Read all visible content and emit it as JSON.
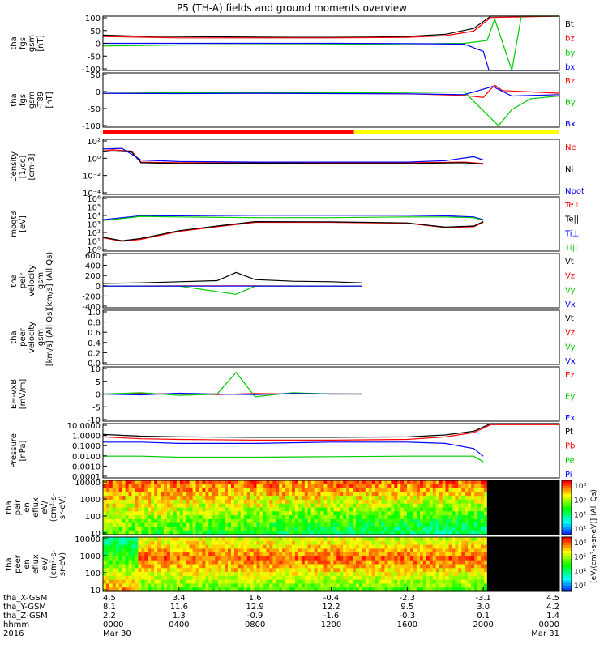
{
  "title": "P5 (TH-A) fields and ground moments overview",
  "year": "2016",
  "colors": {
    "black": "#000000",
    "red": "#ff0000",
    "green": "#00cc00",
    "blue": "#0000ff",
    "yellow": "#ffff00"
  },
  "panels": [
    {
      "id": "fgs-gsm",
      "ylabel": [
        "tha",
        "fgs",
        "gsm",
        "[nT]"
      ],
      "yticks": [
        "100",
        "50",
        "0",
        "-50",
        "-100"
      ],
      "legend": [
        {
          "text": "Bt",
          "color": "#000000"
        },
        {
          "text": "bz",
          "color": "#ff0000"
        },
        {
          "text": "by",
          "color": "#00cc00"
        },
        {
          "text": "bx",
          "color": "#0000ff"
        }
      ]
    },
    {
      "id": "fgs-gsm-t89",
      "ylabel": [
        "tha",
        "fgs",
        "gsm",
        "-T89",
        "[nT]"
      ],
      "yticks": [
        "50",
        "0",
        "-50",
        "-100"
      ],
      "legend": [
        {
          "text": "Bz",
          "color": "#ff0000"
        },
        {
          "text": "By",
          "color": "#00cc00"
        },
        {
          "text": "Bx",
          "color": "#0000ff"
        }
      ]
    },
    {
      "id": "density",
      "ylabel": [
        "Density",
        "[1/cc]",
        "[cm-3]"
      ],
      "yticks": [
        "10²",
        "10⁰",
        "10⁻²",
        "10⁻⁴"
      ],
      "legend": [
        {
          "text": "Ne",
          "color": "#ff0000"
        },
        {
          "text": "Ni",
          "color": "#000000"
        },
        {
          "text": "Npot",
          "color": "#0000ff"
        }
      ]
    },
    {
      "id": "temperature",
      "ylabel": [
        "moqt3",
        "[eV]"
      ],
      "yticks": [
        "10⁶",
        "10⁵",
        "10⁴",
        "10³",
        "10²",
        "10¹",
        "10⁰"
      ],
      "legend": [
        {
          "text": "Te⊥",
          "color": "#ff0000"
        },
        {
          "text": "Te||",
          "color": "#000000"
        },
        {
          "text": "Ti⊥",
          "color": "#0000ff"
        },
        {
          "text": "Ti||",
          "color": "#00cc00"
        }
      ]
    },
    {
      "id": "peir-velocity",
      "ylabel": [
        "tha",
        "peir",
        "velocity",
        "gsm",
        "[km/s] (All Qs)"
      ],
      "yticks": [
        "600",
        "400",
        "200",
        "0",
        "-200",
        "-400"
      ],
      "legend": [
        {
          "text": "Vt",
          "color": "#000000"
        },
        {
          "text": "Vz",
          "color": "#ff0000"
        },
        {
          "text": "Vy",
          "color": "#00cc00"
        },
        {
          "text": "Vx",
          "color": "#0000ff"
        }
      ]
    },
    {
      "id": "peer-velocity",
      "ylabel": [
        "tha",
        "peer",
        "velocity",
        "gsm",
        "[km/s] (All Qs)"
      ],
      "yticks": [
        "1.0",
        "0.8",
        "0.6",
        "0.4",
        "0.2",
        "0.0"
      ],
      "legend": [
        {
          "text": "Vt",
          "color": "#000000"
        },
        {
          "text": "Vz",
          "color": "#ff0000"
        },
        {
          "text": "Vy",
          "color": "#00cc00"
        },
        {
          "text": "Vx",
          "color": "#0000ff"
        }
      ]
    },
    {
      "id": "efield",
      "ylabel": [
        "E=-VxB",
        "[mV/m]"
      ],
      "yticks": [
        "10",
        "5",
        "0",
        "-5",
        "-10"
      ],
      "legend": [
        {
          "text": "Ez",
          "color": "#ff0000"
        },
        {
          "text": "Ey",
          "color": "#00cc00"
        },
        {
          "text": "Ex",
          "color": "#0000ff"
        }
      ]
    },
    {
      "id": "pressure",
      "ylabel": [
        "Pressure",
        "[nPa]"
      ],
      "yticks": [
        "10.0000",
        "1.0000",
        "0.1000",
        "0.0100",
        "0.0010",
        "0.0001"
      ],
      "legend": [
        {
          "text": "Pt",
          "color": "#000000"
        },
        {
          "text": "Pb",
          "color": "#ff0000"
        },
        {
          "text": "Pe",
          "color": "#00cc00"
        },
        {
          "text": "Pi",
          "color": "#0000ff"
        }
      ]
    },
    {
      "id": "peir-spectrogram",
      "ylabel": [
        "tha",
        "peir",
        "en",
        "eflux",
        "eV/",
        "(cm²-s-",
        "sr-eV)"
      ],
      "yticks": [
        "10000",
        "1000",
        "100",
        "10"
      ],
      "legend": []
    },
    {
      "id": "peer-spectrogram",
      "ylabel": [
        "tha",
        "peer",
        "en",
        "eflux",
        "eV/",
        "(cm²-s-",
        "sr-eV)"
      ],
      "yticks": [
        "10000",
        "1000",
        "100",
        "10"
      ],
      "legend": []
    }
  ],
  "colorbar": {
    "top_ticks": [
      "10⁸",
      "10⁶",
      "10⁴",
      "10²"
    ],
    "bottom_ticks": [
      "10⁸",
      "10⁶",
      "10⁴",
      "10²"
    ],
    "label": "[eV/(cm²-s-sr-eV)] (All Qs)"
  },
  "xaxis": {
    "row_labels": [
      "tha_X-GSM",
      "tha_Y-GSM",
      "tha_Z-GSM",
      "hhmm",
      "2016"
    ],
    "columns": [
      {
        "x": "4.5",
        "y": "8.1",
        "z": "2.2",
        "time": "0000",
        "date": "Mar 30"
      },
      {
        "x": "3.4",
        "y": "11.6",
        "z": "1.3",
        "time": "0400",
        "date": ""
      },
      {
        "x": "1.6",
        "y": "12.9",
        "z": "-0.9",
        "time": "0800",
        "date": ""
      },
      {
        "x": "-0.4",
        "y": "12.2",
        "z": "-1.6",
        "time": "1200",
        "date": ""
      },
      {
        "x": "-2.3",
        "y": "9.5",
        "z": "-0.3",
        "time": "1600",
        "date": ""
      },
      {
        "x": "-3.1",
        "y": "3.0",
        "z": "0.1",
        "time": "2000",
        "date": ""
      },
      {
        "x": "4.5",
        "y": "4.2",
        "z": "1.4",
        "time": "0000",
        "date": "Mar 31"
      }
    ]
  },
  "chart_data": {
    "type": "line",
    "title": "P5 (TH-A) fields and ground moments overview",
    "x_range_hours": [
      0,
      24
    ],
    "x_ticks_hhmm": [
      "0000",
      "0400",
      "0800",
      "1200",
      "1600",
      "2000",
      "0000"
    ],
    "grid": false,
    "legend_placement": "right",
    "panels": [
      {
        "id": "fgs-gsm",
        "ylim": [
          -100,
          100
        ],
        "series": [
          {
            "name": "Bt",
            "x": [
              0,
              2,
              4,
              6,
              8,
              10,
              12,
              14,
              16,
              18,
              19.5,
              20.4,
              24
            ],
            "y": [
              30,
              26,
              25,
              24,
              23,
              22,
              22,
              23,
              25,
              33,
              55,
              100,
              100
            ]
          },
          {
            "name": "bz",
            "x": [
              0,
              4,
              8,
              12,
              16,
              18,
              19.5,
              20.4,
              24
            ],
            "y": [
              25,
              20,
              20,
              20,
              22,
              28,
              45,
              95,
              100
            ]
          },
          {
            "name": "by",
            "x": [
              0,
              4,
              8,
              12,
              16,
              19,
              20.2,
              20.6,
              21.5,
              22,
              24
            ],
            "y": [
              -10,
              -6,
              -5,
              -4,
              -2,
              0,
              10,
              90,
              -100,
              100,
              100
            ]
          },
          {
            "name": "bx",
            "x": [
              0,
              4,
              8,
              12,
              16,
              19,
              20,
              20.3,
              24
            ],
            "y": [
              0,
              0,
              0,
              0,
              -1,
              -3,
              -30,
              -100,
              -100
            ]
          }
        ]
      },
      {
        "id": "fgs-gsm-t89",
        "ylim": [
          -125,
          75
        ],
        "series": [
          {
            "name": "Bz",
            "x": [
              0,
              4,
              8,
              12,
              16,
              19,
              20,
              20.6,
              21,
              24
            ],
            "y": [
              0,
              1,
              0,
              0,
              -2,
              -8,
              -15,
              30,
              10,
              0
            ]
          },
          {
            "name": "By",
            "x": [
              0,
              4,
              8,
              12,
              16,
              19,
              20.8,
              21.5,
              22.5,
              24
            ],
            "y": [
              0,
              2,
              3,
              2,
              3,
              5,
              -120,
              -60,
              -20,
              -10
            ]
          },
          {
            "name": "Bx",
            "x": [
              0,
              4,
              8,
              12,
              16,
              19,
              20.5,
              21.5,
              24
            ],
            "y": [
              0,
              -1,
              0,
              -1,
              -2,
              -5,
              25,
              -10,
              -5
            ]
          }
        ]
      },
      {
        "id": "density",
        "yscale": "log",
        "ylim": [
          1e-05,
          1000
        ],
        "series": [
          {
            "name": "Ne",
            "x": [
              0,
              0.5,
              1.5,
              2,
              4,
              8,
              12,
              16,
              19,
              20
            ],
            "y": [
              20,
              30,
              20,
              0.5,
              0.4,
              0.4,
              0.4,
              0.4,
              0.5,
              0.3
            ]
          },
          {
            "name": "Ni",
            "x": [
              0,
              0.5,
              1.5,
              2,
              4,
              8,
              12,
              16,
              19,
              20
            ],
            "y": [
              15,
              20,
              15,
              0.4,
              0.3,
              0.35,
              0.3,
              0.3,
              0.4,
              0.25
            ]
          },
          {
            "name": "Npot",
            "x": [
              0,
              1,
              2,
              4,
              8,
              12,
              16,
              18,
              19.5,
              20
            ],
            "y": [
              40,
              50,
              1,
              0.6,
              0.5,
              0.5,
              0.5,
              0.8,
              3,
              1
            ]
          }
        ]
      },
      {
        "id": "temperature",
        "yscale": "log",
        "ylim": [
          1,
          1000000
        ],
        "series": [
          {
            "name": "Te⊥",
            "x": [
              0,
              1,
              2,
              4,
              6,
              8,
              12,
              16,
              18,
              19.5,
              20
            ],
            "y": [
              30,
              12,
              20,
              150,
              500,
              1500,
              1500,
              1200,
              400,
              500,
              1500
            ]
          },
          {
            "name": "Te||",
            "x": [
              0,
              1,
              2,
              4,
              6,
              8,
              12,
              16,
              18,
              19.5,
              20
            ],
            "y": [
              35,
              14,
              25,
              180,
              600,
              1800,
              1700,
              1300,
              450,
              600,
              1800
            ]
          },
          {
            "name": "Ti⊥",
            "x": [
              0,
              1,
              2,
              4,
              8,
              12,
              16,
              18,
              19.5,
              20
            ],
            "y": [
              3000,
              5000,
              8000,
              8000,
              9000,
              9000,
              9000,
              8000,
              6000,
              3000
            ]
          },
          {
            "name": "Ti||",
            "x": [
              0,
              1,
              2,
              4,
              8,
              12,
              16,
              18,
              19.5,
              20
            ],
            "y": [
              2500,
              4000,
              7000,
              6000,
              5000,
              5000,
              6000,
              6000,
              5000,
              2500
            ]
          }
        ]
      },
      {
        "id": "peir-velocity",
        "ylim": [
          -400,
          600
        ],
        "series": [
          {
            "name": "Vt",
            "x": [
              0,
              2,
              4,
              6,
              7,
              8,
              10,
              12,
              13.6
            ],
            "y": [
              50,
              60,
              80,
              100,
              250,
              120,
              90,
              80,
              60
            ]
          },
          {
            "name": "Vz",
            "x": [
              0,
              4,
              8,
              12,
              13.6
            ],
            "y": [
              0,
              5,
              5,
              0,
              0
            ]
          },
          {
            "name": "Vy",
            "x": [
              0,
              4,
              7,
              8,
              12,
              13.6
            ],
            "y": [
              0,
              0,
              -150,
              0,
              0,
              0
            ]
          },
          {
            "name": "Vx",
            "x": [
              0,
              4,
              8,
              12,
              13.6
            ],
            "y": [
              0,
              0,
              0,
              0,
              0
            ]
          }
        ]
      },
      {
        "id": "peer-velocity",
        "ylim": [
          0,
          1
        ],
        "series": []
      },
      {
        "id": "efield",
        "ylim": [
          -10,
          10
        ],
        "series": [
          {
            "name": "Ez",
            "x": [
              0,
              2,
              4,
              6,
              8,
              10,
              12,
              13.6
            ],
            "y": [
              0,
              0.2,
              0,
              -0.2,
              0.2,
              0,
              0.1,
              0
            ]
          },
          {
            "name": "Ey",
            "x": [
              0,
              2,
              4,
              6,
              7,
              8,
              10,
              12,
              13.6
            ],
            "y": [
              0,
              0.5,
              -0.5,
              0,
              8,
              -1,
              0.5,
              0,
              0
            ]
          },
          {
            "name": "Ex",
            "x": [
              0,
              2,
              4,
              6,
              8,
              10,
              12,
              13.6
            ],
            "y": [
              0,
              -0.3,
              0.3,
              0,
              -0.2,
              0.2,
              0,
              0
            ]
          }
        ]
      },
      {
        "id": "pressure",
        "yscale": "log",
        "ylim": [
          0.0001,
          10
        ],
        "series": [
          {
            "name": "Pt",
            "x": [
              0,
              2,
              4,
              8,
              12,
              16,
              18,
              19.5,
              20.4,
              24
            ],
            "y": [
              1,
              0.7,
              0.6,
              0.55,
              0.55,
              0.6,
              0.9,
              2,
              10,
              10
            ]
          },
          {
            "name": "Pb",
            "x": [
              0,
              2,
              4,
              8,
              12,
              16,
              18,
              19.5,
              20.4,
              24
            ],
            "y": [
              0.6,
              0.4,
              0.35,
              0.3,
              0.3,
              0.35,
              0.6,
              1.5,
              8,
              8
            ]
          },
          {
            "name": "Pe",
            "x": [
              0,
              2,
              4,
              8,
              12,
              16,
              18,
              19.5,
              20
            ],
            "y": [
              0.01,
              0.01,
              0.008,
              0.008,
              0.009,
              0.01,
              0.01,
              0.01,
              0.003
            ]
          },
          {
            "name": "Pi",
            "x": [
              0,
              2,
              4,
              8,
              12,
              16,
              18,
              19.5,
              20
            ],
            "y": [
              0.2,
              0.2,
              0.15,
              0.15,
              0.2,
              0.2,
              0.15,
              0.05,
              0.01
            ]
          }
        ]
      },
      {
        "id": "peir-spectrogram",
        "type": "heatmap",
        "yscale": "log",
        "ylim": [
          5,
          30000
        ],
        "data_end_hour": 20.2
      },
      {
        "id": "peer-spectrogram",
        "type": "heatmap",
        "yscale": "log",
        "ylim": [
          5,
          30000
        ],
        "data_end_hour": 20.2
      }
    ]
  }
}
